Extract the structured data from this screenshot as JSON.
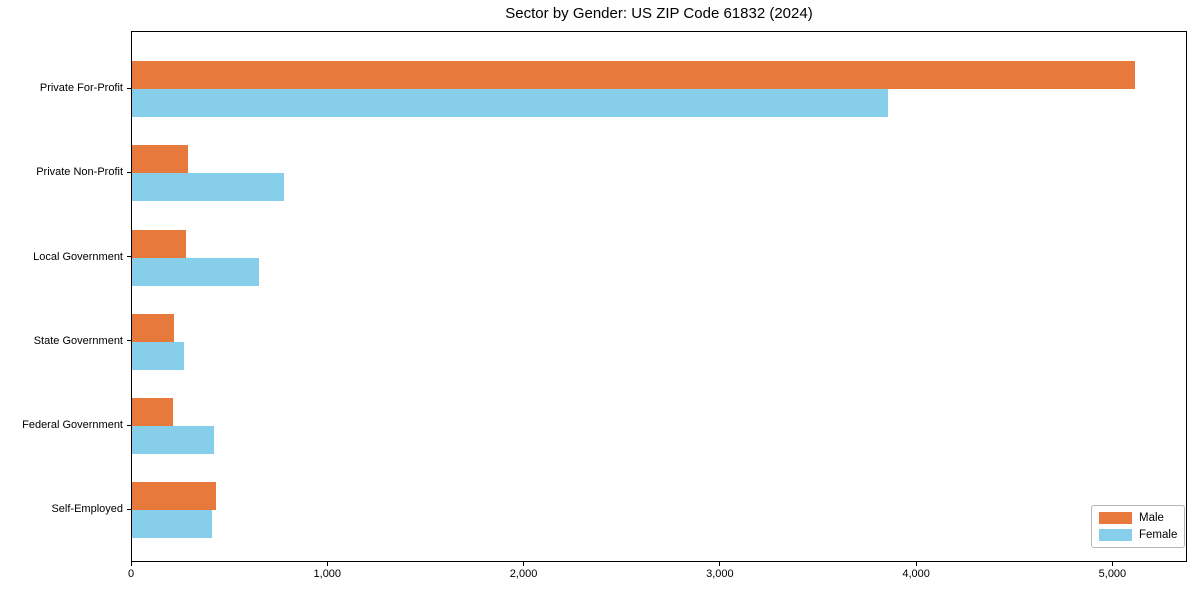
{
  "chart_data": {
    "type": "bar",
    "orientation": "horizontal",
    "title": "Sector by Gender: US ZIP Code 61832 (2024)",
    "categories": [
      "Private For-Profit",
      "Private Non-Profit",
      "Local Government",
      "State Government",
      "Federal Government",
      "Self-Employed"
    ],
    "series": [
      {
        "name": "Male",
        "color": "#e8793d",
        "values": [
          5110,
          285,
          275,
          215,
          210,
          430
        ]
      },
      {
        "name": "Female",
        "color": "#87ceeb",
        "values": [
          3850,
          775,
          645,
          265,
          420,
          410
        ]
      }
    ],
    "xlabel": "",
    "ylabel": "",
    "xlim": [
      0,
      5380
    ],
    "x_ticks": [
      0,
      1000,
      2000,
      3000,
      4000,
      5000
    ],
    "x_tick_labels": [
      "0",
      "1,000",
      "2,000",
      "3,000",
      "4,000",
      "5,000"
    ],
    "grid": false,
    "legend": {
      "position": "lower right",
      "entries": [
        "Male",
        "Female"
      ]
    },
    "colors": {
      "male": "#e8793d",
      "female": "#87ceeb",
      "spine": "#000000",
      "background": "#ffffff"
    }
  }
}
